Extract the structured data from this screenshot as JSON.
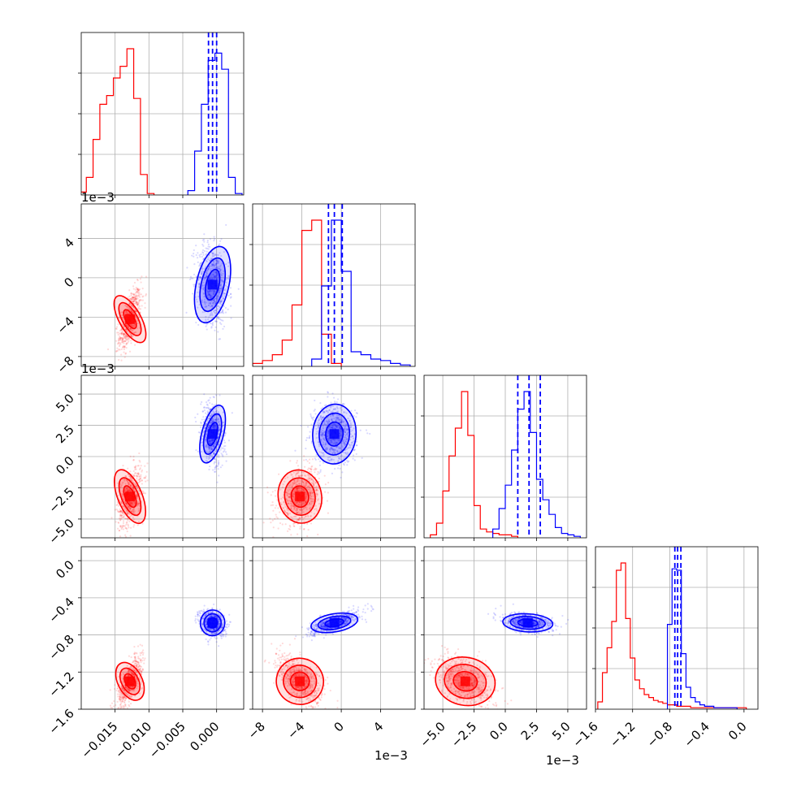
{
  "chart_data": {
    "type": "corner",
    "grid": true,
    "colors": {
      "series_a": "#ff0000",
      "series_b": "#0000ff"
    },
    "parameters": [
      {
        "id": "p0",
        "range": [
          -0.02,
          0.004
        ],
        "ticks": [
          -0.015,
          -0.01,
          -0.005,
          0.0
        ],
        "tick_labels": [
          "−0.015",
          "−0.010",
          "−0.005",
          "0.000"
        ],
        "offset_text": ""
      },
      {
        "id": "p1",
        "range": [
          -0.009,
          0.0075
        ],
        "ticks": [
          -0.008,
          -0.004,
          0.0,
          0.004
        ],
        "tick_labels": [
          "−8",
          "−4",
          "0",
          "4"
        ],
        "offset_text": "1e−3"
      },
      {
        "id": "p2",
        "range": [
          -0.0065,
          0.0065
        ],
        "ticks": [
          -0.005,
          -0.0025,
          0.0,
          0.0025,
          0.005
        ],
        "tick_labels": [
          "−5.0",
          "−2.5",
          "0.0",
          "2.5",
          "5.0"
        ],
        "offset_text": "1e−3"
      },
      {
        "id": "p3",
        "range": [
          -1.6,
          0.15
        ],
        "ticks": [
          -1.6,
          -1.2,
          -0.8,
          -0.4,
          0.0
        ],
        "tick_labels": [
          "−1.6",
          "−1.2",
          "−0.8",
          "−0.4",
          "0.0"
        ],
        "offset_text": ""
      }
    ],
    "series": [
      {
        "color": "#ff0000",
        "marginals": [
          [
            [
              -0.01975,
              0.02
            ],
            [
              -0.01875,
              0.12
            ],
            [
              -0.01775,
              0.38
            ],
            [
              -0.01675,
              0.62
            ],
            [
              -0.01575,
              0.68
            ],
            [
              -0.01475,
              0.8
            ],
            [
              -0.01375,
              0.88
            ],
            [
              -0.01275,
              1.0
            ],
            [
              -0.01175,
              0.66
            ],
            [
              -0.01075,
              0.14
            ],
            [
              -0.00975,
              0.01
            ]
          ],
          [
            [
              -0.0085,
              0.02
            ],
            [
              -0.0075,
              0.04
            ],
            [
              -0.0065,
              0.08
            ],
            [
              -0.0055,
              0.18
            ],
            [
              -0.0045,
              0.42
            ],
            [
              -0.0035,
              0.93
            ],
            [
              -0.0025,
              1.0
            ],
            [
              -0.0015,
              0.22
            ],
            [
              -0.0005,
              0.02
            ]
          ],
          [
            [
              -0.00575,
              0.02
            ],
            [
              -0.00525,
              0.1
            ],
            [
              -0.00475,
              0.32
            ],
            [
              -0.00425,
              0.56
            ],
            [
              -0.00375,
              0.75
            ],
            [
              -0.00325,
              1.0
            ],
            [
              -0.00275,
              0.7
            ],
            [
              -0.00225,
              0.22
            ],
            [
              -0.00175,
              0.06
            ],
            [
              -0.00125,
              0.04
            ],
            [
              -0.00075,
              0.03
            ],
            [
              -0.00025,
              0.02
            ],
            [
              0.00025,
              0.02
            ],
            [
              0.00075,
              0.01
            ]
          ],
          [
            [
              -1.55,
              0.05
            ],
            [
              -1.5,
              0.25
            ],
            [
              -1.45,
              0.42
            ],
            [
              -1.4,
              0.6
            ],
            [
              -1.35,
              0.95
            ],
            [
              -1.3,
              1.0
            ],
            [
              -1.25,
              0.62
            ],
            [
              -1.2,
              0.35
            ],
            [
              -1.15,
              0.2
            ],
            [
              -1.1,
              0.14
            ],
            [
              -1.05,
              0.1
            ],
            [
              -1.0,
              0.08
            ],
            [
              -0.95,
              0.06
            ],
            [
              -0.9,
              0.05
            ],
            [
              -0.85,
              0.04
            ],
            [
              -0.8,
              0.03
            ],
            [
              -0.75,
              0.03
            ],
            [
              -0.7,
              0.02
            ],
            [
              -0.65,
              0.02
            ],
            [
              -0.6,
              0.02
            ],
            [
              -0.55,
              0.01
            ],
            [
              -0.5,
              0.01
            ],
            [
              -0.45,
              0.01
            ],
            [
              -0.4,
              0.01
            ],
            [
              -0.35,
              0.01
            ],
            [
              -0.3,
              0.01
            ],
            [
              -0.25,
              0.01
            ],
            [
              -0.2,
              0.01
            ],
            [
              -0.15,
              0.01
            ],
            [
              -0.1,
              0.01
            ],
            [
              -0.05,
              0.01
            ],
            [
              0.0,
              0.01
            ]
          ]
        ],
        "means": [
          -0.0128,
          -0.0042,
          -0.0032,
          -1.3
        ]
      },
      {
        "color": "#0000ff",
        "marginals": [
          [
            [
              -0.00375,
              0.03
            ],
            [
              -0.00275,
              0.3
            ],
            [
              -0.00175,
              0.62
            ],
            [
              -0.00075,
              0.92
            ],
            [
              0.00025,
              0.97
            ],
            [
              0.00125,
              0.86
            ],
            [
              0.00225,
              0.12
            ],
            [
              0.00325,
              0.01
            ]
          ],
          [
            [
              -0.0025,
              0.05
            ],
            [
              -0.0015,
              0.55
            ],
            [
              -0.0005,
              1.0
            ],
            [
              0.0005,
              0.65
            ],
            [
              0.0015,
              0.1
            ],
            [
              0.0025,
              0.08
            ],
            [
              0.0035,
              0.05
            ],
            [
              0.0045,
              0.04
            ],
            [
              0.0055,
              0.02
            ],
            [
              0.0065,
              0.01
            ]
          ],
          [
            [
              -0.00075,
              0.06
            ],
            [
              -0.00025,
              0.2
            ],
            [
              0.00025,
              0.36
            ],
            [
              0.00075,
              0.6
            ],
            [
              0.00125,
              0.88
            ],
            [
              0.00175,
              1.0
            ],
            [
              0.00225,
              0.72
            ],
            [
              0.00275,
              0.4
            ],
            [
              0.00325,
              0.26
            ],
            [
              0.00375,
              0.16
            ],
            [
              0.00425,
              0.07
            ],
            [
              0.00475,
              0.03
            ],
            [
              0.00525,
              0.02
            ],
            [
              0.00575,
              0.01
            ]
          ],
          [
            [
              -0.8,
              0.58
            ],
            [
              -0.75,
              0.96
            ],
            [
              -0.7,
              0.95
            ],
            [
              -0.65,
              0.38
            ],
            [
              -0.6,
              0.15
            ],
            [
              -0.55,
              0.08
            ],
            [
              -0.5,
              0.05
            ],
            [
              -0.45,
              0.03
            ],
            [
              -0.4,
              0.02
            ],
            [
              -0.35,
              0.02
            ],
            [
              -0.3,
              0.01
            ],
            [
              -0.25,
              0.01
            ],
            [
              -0.2,
              0.01
            ],
            [
              -0.15,
              0.01
            ],
            [
              -0.1,
              0.01
            ]
          ]
        ],
        "quantiles": [
          [
            -0.0012,
            0.0,
            -0.0006
          ],
          [
            -0.0013,
            -0.0007,
            0.0001
          ],
          [
            0.001,
            0.0019,
            0.0028
          ],
          [
            -0.745,
            -0.715,
            -0.68
          ]
        ],
        "means": [
          -0.0006,
          -0.0007,
          0.0018,
          -0.67
        ]
      }
    ]
  }
}
